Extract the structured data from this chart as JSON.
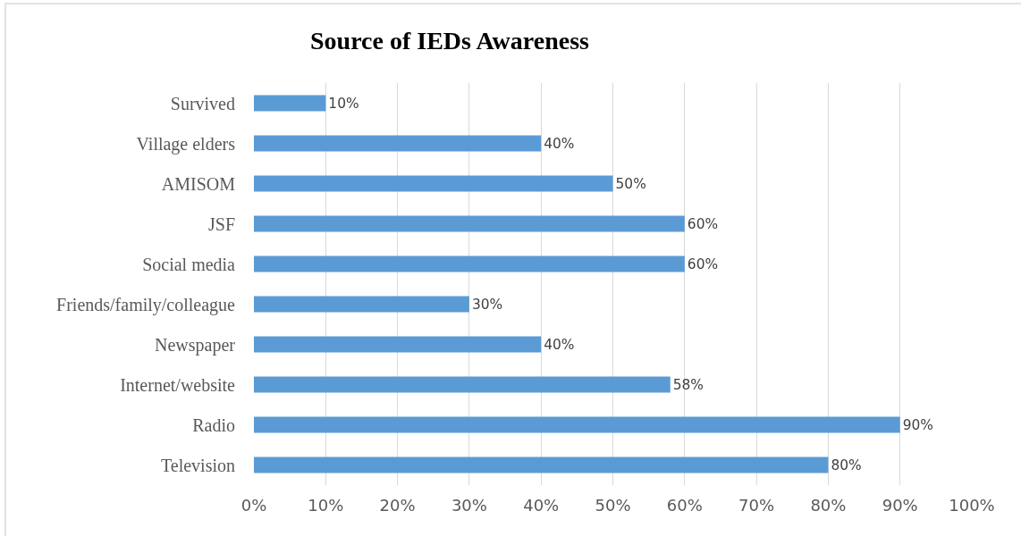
{
  "chart_data": {
    "type": "bar",
    "orientation": "horizontal",
    "title": "Source of IEDs Awareness",
    "categories": [
      "Survived",
      "Village elders",
      "AMISOM",
      "JSF",
      "Social media",
      "Friends/family/colleague",
      "Newspaper",
      "Internet/website",
      "Radio",
      "Television"
    ],
    "values": [
      10,
      40,
      50,
      60,
      60,
      30,
      40,
      58,
      90,
      80
    ],
    "value_labels": [
      "10%",
      "40%",
      "50%",
      "60%",
      "60%",
      "30%",
      "40%",
      "58%",
      "90%",
      "80%"
    ],
    "color": "#5b9bd5",
    "xlim": [
      0,
      100
    ],
    "xticks": [
      {
        "value": 0,
        "label": "0%"
      },
      {
        "value": 10,
        "label": "10%"
      },
      {
        "value": 20,
        "label": "20%"
      },
      {
        "value": 30,
        "label": "30%"
      },
      {
        "value": 40,
        "label": "40%"
      },
      {
        "value": 50,
        "label": "50%"
      },
      {
        "value": 60,
        "label": "60%"
      },
      {
        "value": 70,
        "label": "70%"
      },
      {
        "value": 80,
        "label": "80%"
      },
      {
        "value": 90,
        "label": "90%"
      },
      {
        "value": 100,
        "label": "100%"
      }
    ],
    "grid": "x"
  }
}
